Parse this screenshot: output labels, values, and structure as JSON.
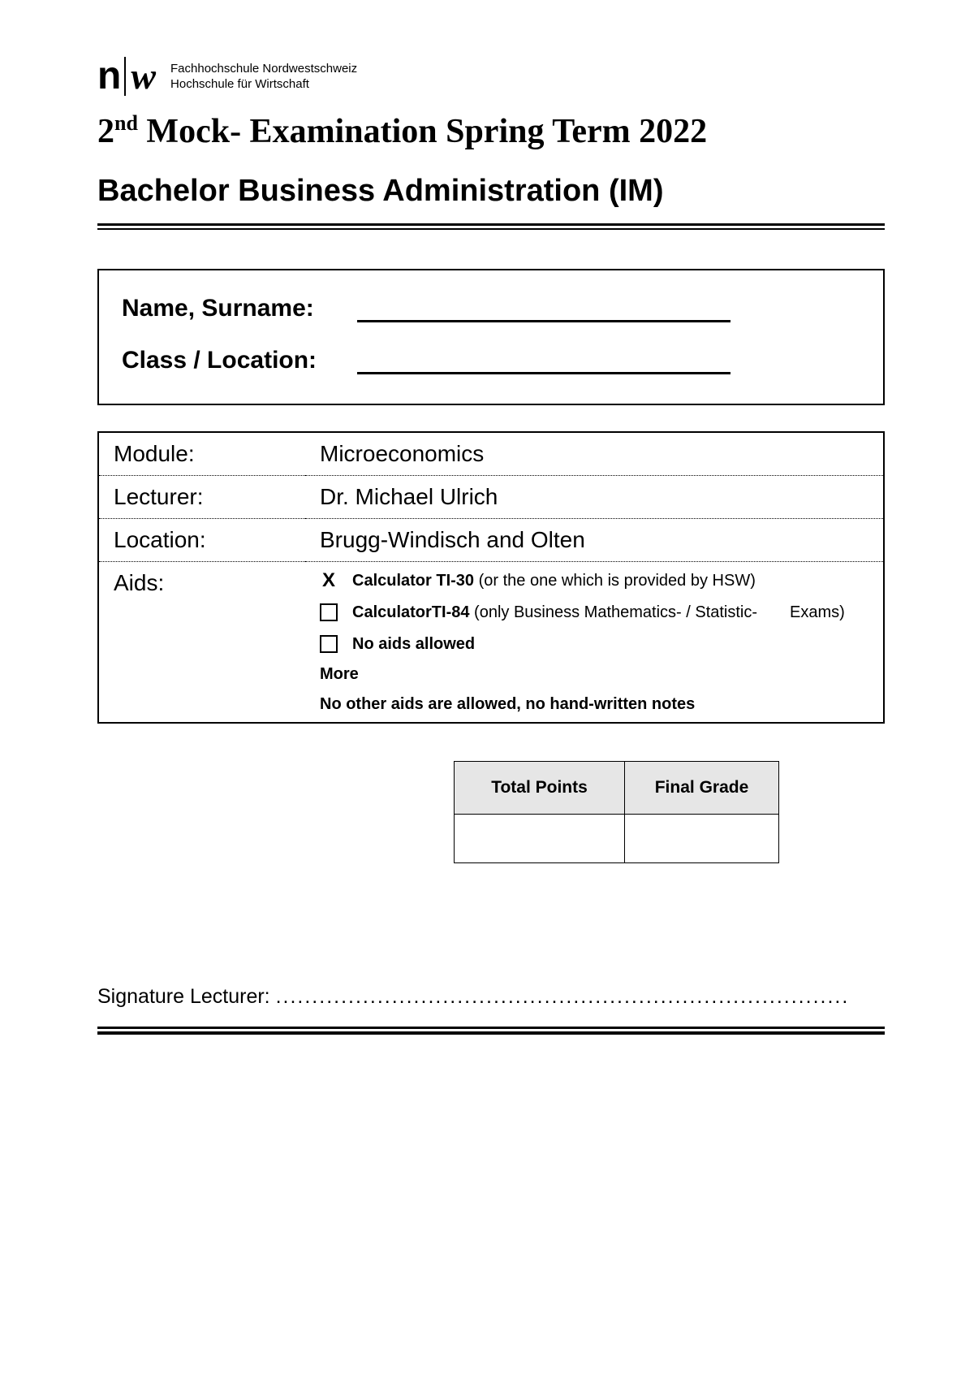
{
  "institution": {
    "line1": "Fachhochschule Nordwestschweiz",
    "line2": "Hochschule für Wirtschaft"
  },
  "title": {
    "prefix": "2",
    "ordinal": "nd",
    "rest": " Mock- Examination Spring Term 2022"
  },
  "subtitle": "Bachelor Business Administration (IM)",
  "name_box": {
    "name_label": "Name, Surname:",
    "class_label": "Class / Location:"
  },
  "info": {
    "module_label": "Module:",
    "module_value": "Microeconomics",
    "lecturer_label": "Lecturer:",
    "lecturer_value": "Dr. Michael Ulrich",
    "location_label": "Location:",
    "location_value": "Brugg-Windisch and Olten",
    "aids_label": "Aids:"
  },
  "aids": {
    "item1_checked": "X",
    "item1_bold": "Calculator TI-30",
    "item1_rest": " (or the one which is provided by HSW)",
    "item2_bold": "CalculatorTI-84",
    "item2_rest": " (only Business Mathematics- / Statistic-  Exams)",
    "item3_bold": "No aids allowed",
    "more_label": "More",
    "note": "No other aids are allowed, no hand-written notes"
  },
  "grade": {
    "points_header": "Total Points",
    "grade_header": "Final Grade"
  },
  "signature": {
    "label": "Signature Lecturer: ",
    "dots": "..............................................................................."
  },
  "colors": {
    "text": "#000000",
    "background": "#ffffff",
    "header_bg": "#e6e6e6"
  }
}
